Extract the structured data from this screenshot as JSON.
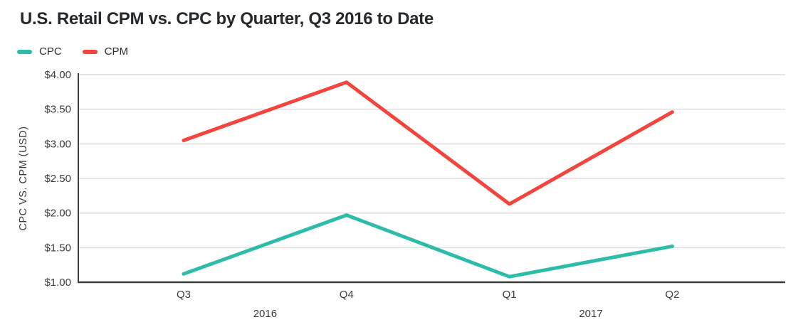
{
  "title": "U.S. Retail CPM vs. CPC by Quarter, Q3 2016 to Date",
  "colors": {
    "cpc": "#2ebcaa",
    "cpm": "#f3453d",
    "grid": "#dedede",
    "axis": "#3d3d3d",
    "title_text": "#26292c",
    "tick_text": "#3b3b3b",
    "background": "#ffffff"
  },
  "chart_data": {
    "type": "line",
    "categories": [
      "Q3",
      "Q4",
      "Q1",
      "Q2"
    ],
    "group_labels": [
      {
        "label": "2016",
        "span": [
          0,
          1
        ]
      },
      {
        "label": "2017",
        "span": [
          2,
          3
        ]
      }
    ],
    "series": [
      {
        "name": "CPC",
        "color": "#2ebcaa",
        "values": [
          1.12,
          1.97,
          1.08,
          1.52
        ]
      },
      {
        "name": "CPM",
        "color": "#f3453d",
        "values": [
          3.05,
          3.89,
          2.13,
          3.46
        ]
      }
    ],
    "title": "U.S. Retail CPM vs. CPC by Quarter, Q3 2016 to Date",
    "xlabel": "",
    "ylabel": "CPC VS. CPM (USD)",
    "ylim": [
      1.0,
      4.0
    ],
    "yticks": [
      1.0,
      1.5,
      2.0,
      2.5,
      3.0,
      3.5,
      4.0
    ],
    "ytick_labels": [
      "$1.00",
      "$1.50",
      "$2.00",
      "$2.50",
      "$3.00",
      "$3.50",
      "$4.00"
    ],
    "grid": true,
    "legend_position": "top-left",
    "currency": "USD"
  }
}
